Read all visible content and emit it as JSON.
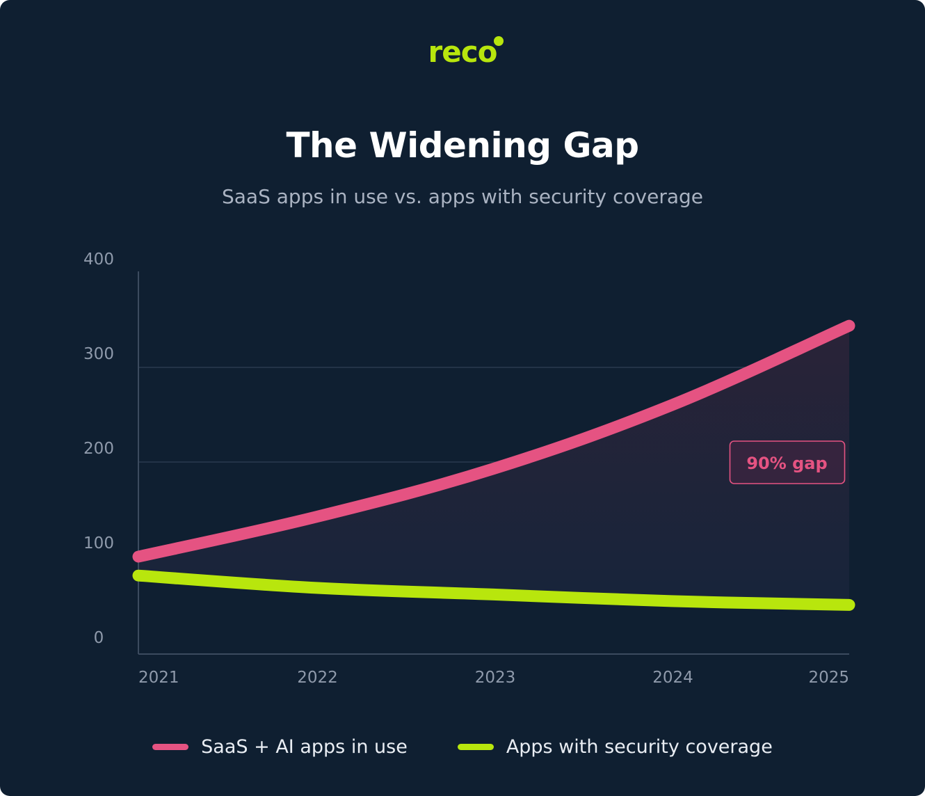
{
  "brand": {
    "name": "reco",
    "color": "#b8e60d"
  },
  "colors": {
    "background": "#0f1f31",
    "grid": "#2a3a4f",
    "axis": "#3c4b5f",
    "tick_text": "#8f9aab",
    "saas": "#e55382",
    "coverage": "#b8e60d",
    "gap_fill": "#2a2338"
  },
  "chart_data": {
    "type": "line",
    "title": "The Widening Gap",
    "subtitle": "SaaS apps in use vs. apps with security coverage",
    "x": [
      "2021",
      "2022",
      "2023",
      "2024",
      "2025"
    ],
    "yticks": [
      "0",
      "100",
      "200",
      "300",
      "400"
    ],
    "ylim": [
      0,
      400
    ],
    "grid": true,
    "legend_position": "bottom",
    "series": [
      {
        "name": "SaaS + AI apps in use",
        "values": [
          100,
          142,
          193,
          260,
          344
        ],
        "color": "#e55382"
      },
      {
        "name": "Apps with security coverage",
        "values": [
          80,
          67,
          60,
          53,
          49
        ],
        "color": "#b8e60d"
      }
    ],
    "annotation": {
      "text": "90% gap",
      "x": "2024",
      "y": 200
    }
  }
}
